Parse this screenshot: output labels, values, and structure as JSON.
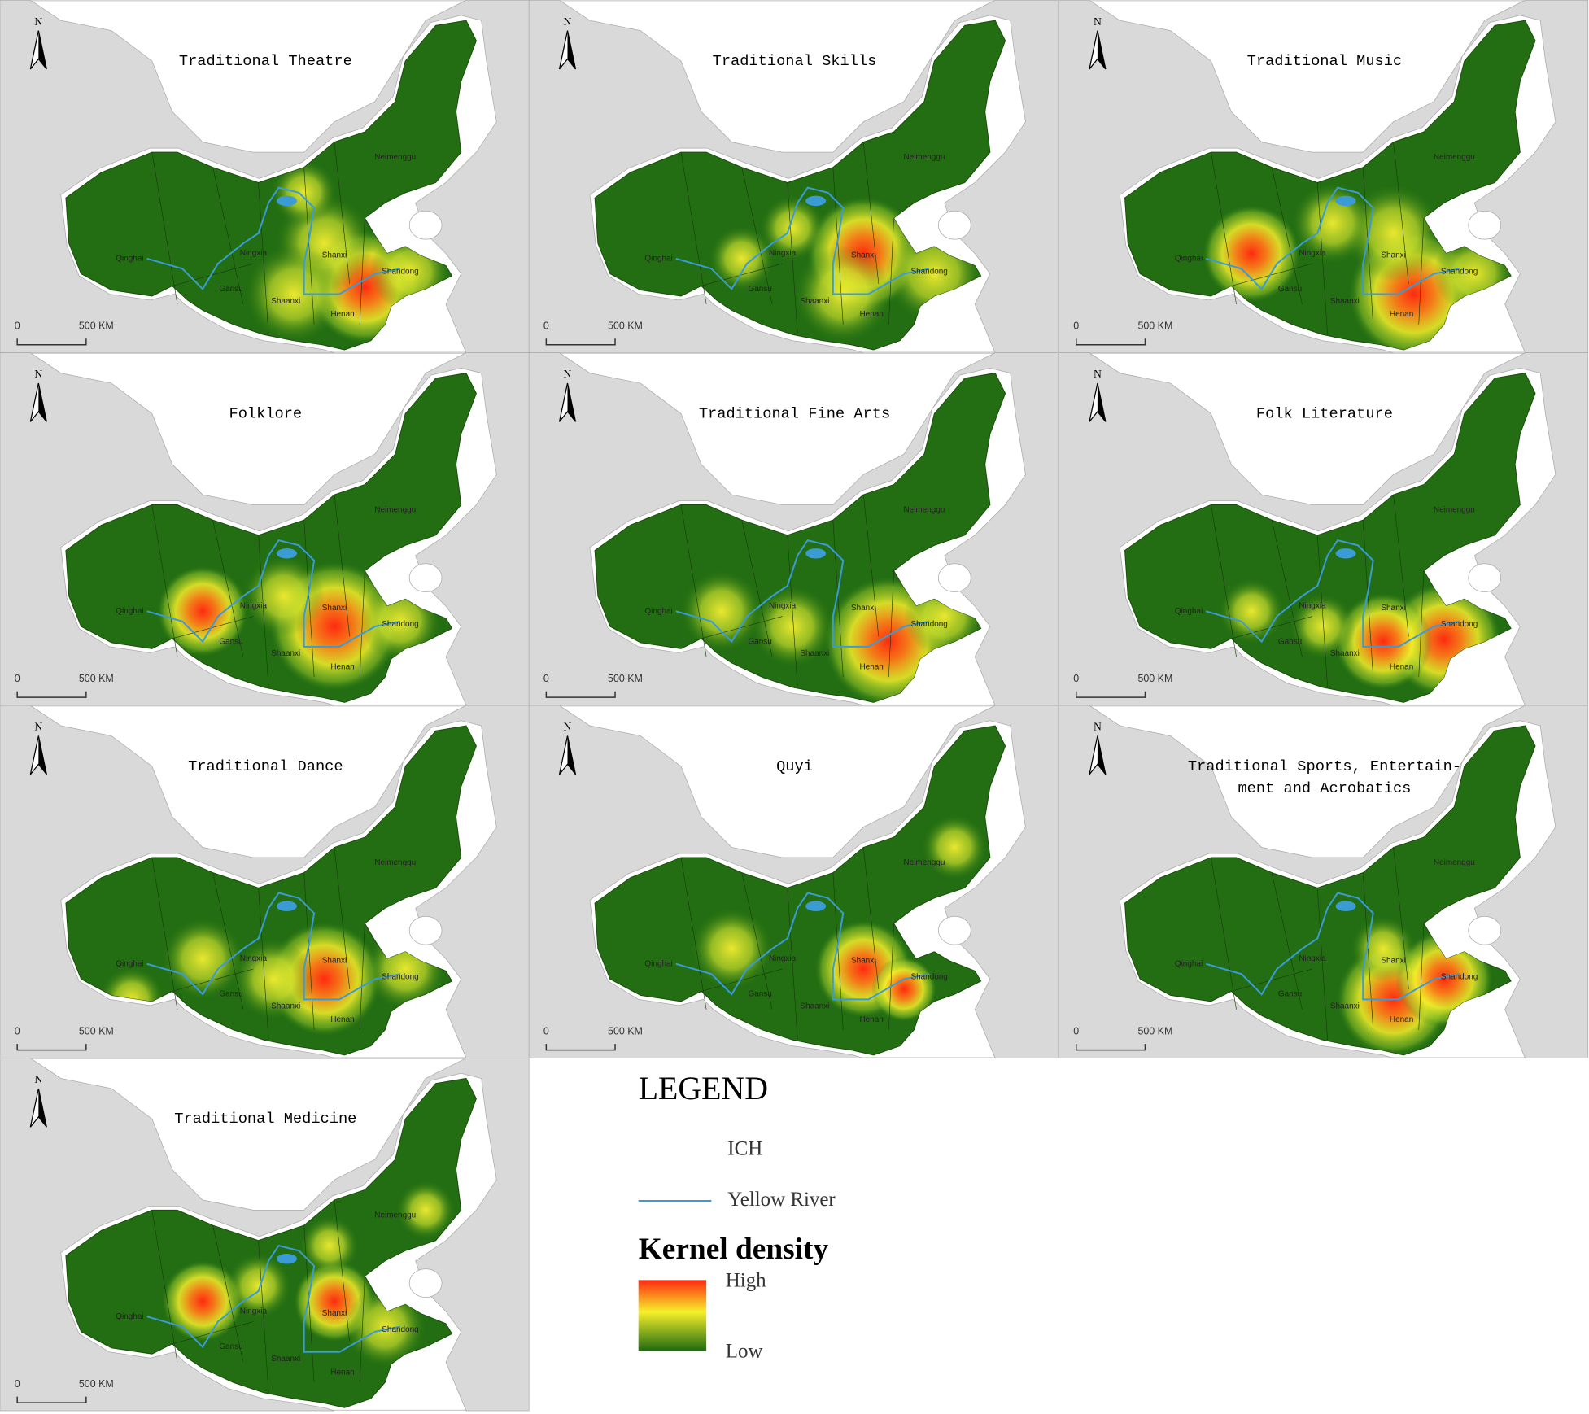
{
  "panels": [
    {
      "title_lines": [
        "Traditional Theatre"
      ]
    },
    {
      "title_lines": [
        "Traditional Skills"
      ]
    },
    {
      "title_lines": [
        "Traditional Music"
      ]
    },
    {
      "title_lines": [
        "Folklore"
      ]
    },
    {
      "title_lines": [
        "Traditional Fine Arts"
      ]
    },
    {
      "title_lines": [
        "Folk Literature"
      ]
    },
    {
      "title_lines": [
        "Traditional Dance"
      ]
    },
    {
      "title_lines": [
        "Quyi"
      ]
    },
    {
      "title_lines": [
        "Traditional Sports, Entertain-",
        "ment and Acrobatics"
      ]
    },
    {
      "title_lines": [
        "Traditional Medicine"
      ]
    }
  ],
  "map_labels": {
    "north": "N",
    "scale_start": "0",
    "scale_end": "500 KM",
    "provinces": [
      "Neimenggu",
      "Qinghai",
      "Ningxia",
      "Gansu",
      "Shaanxi",
      "Shanxi",
      "Henan",
      "Shandong"
    ]
  },
  "legend": {
    "title": "LEGEND",
    "ich": "ICH",
    "river": "Yellow River",
    "density_title": "Kernel density",
    "high": "High",
    "low": "Low"
  }
}
